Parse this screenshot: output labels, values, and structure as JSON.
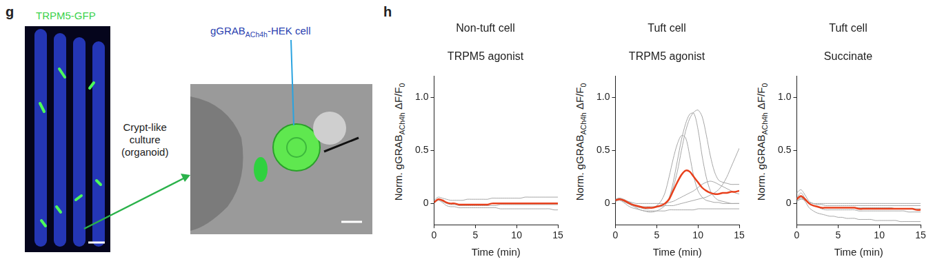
{
  "figure_g": {
    "label": "g",
    "stain_label": "TRPM5-GFP",
    "arrow_label": [
      "Crypt-like",
      "culture",
      "(organoid)"
    ],
    "cell_label": [
      {
        "text": "gGRAB"
      },
      {
        "text": "ACh4h",
        "sub": true
      },
      {
        "text": "-HEK cell"
      }
    ]
  },
  "panel_h_label": "h",
  "chart_data": [
    {
      "type": "line",
      "title": "Non-tuft cell",
      "subtitle": "TRPM5 agonist",
      "x_label": "Time (min)",
      "y_label": [
        {
          "text": "Norm. gGRAB"
        },
        {
          "text": "ACh4h",
          "sub": true
        },
        {
          "text": " ΔF/F"
        },
        {
          "text": "0",
          "sub": true
        }
      ],
      "x": [
        0,
        0.5,
        1,
        1.5,
        2,
        2.5,
        3,
        3.5,
        4,
        4.5,
        5,
        5.5,
        6,
        6.5,
        7,
        7.5,
        8,
        8.5,
        9,
        9.5,
        10,
        10.5,
        11,
        11.5,
        12,
        12.5,
        13,
        13.5,
        14,
        14.5,
        15
      ],
      "xlim": [
        0,
        15
      ],
      "xticks": [
        0,
        5,
        10,
        15
      ],
      "ylim": [
        -0.2,
        1.2
      ],
      "yticks": [
        0,
        0.5,
        {
          "value": 1,
          "label": "1.0"
        }
      ],
      "grid": false,
      "series": [
        {
          "color": "#a6a6a6",
          "values": [
            0.03,
            0.06,
            0.05,
            0.04,
            0.03,
            0.03,
            0.03,
            0.03,
            0.04,
            0.04,
            0.04,
            0.04,
            0.04,
            0.04,
            0.05,
            0.05,
            0.05,
            0.05,
            0.05,
            0.05,
            0.05,
            0.05,
            0.06,
            0.06,
            0.06,
            0.06,
            0.06,
            0.06,
            0.06,
            0.06,
            0.06
          ]
        },
        {
          "color": "#a6a6a6",
          "values": [
            0.01,
            0.04,
            0.02,
            0,
            -0.01,
            -0.01,
            -0.02,
            -0.02,
            -0.02,
            -0.02,
            -0.02,
            -0.02,
            -0.02,
            -0.02,
            -0.02,
            -0.02,
            -0.01,
            -0.01,
            -0.01,
            -0.01,
            -0.01,
            -0.01,
            -0.01,
            -0.01,
            -0.01,
            -0.01,
            -0.01,
            -0.01,
            -0.01,
            -0.01,
            -0.01
          ]
        },
        {
          "color": "#a6a6a6",
          "values": [
            0,
            0.03,
            0.01,
            -0.02,
            -0.03,
            -0.03,
            -0.04,
            -0.04,
            -0.04,
            -0.04,
            -0.04,
            -0.04,
            -0.04,
            -0.04,
            -0.04,
            -0.04,
            -0.05,
            -0.05,
            -0.05,
            -0.05,
            -0.05,
            -0.05,
            -0.05,
            -0.05,
            -0.05,
            -0.05,
            -0.05,
            -0.05,
            -0.05,
            -0.06,
            -0.06
          ]
        },
        {
          "color": "#e8401c",
          "values": [
            0.01,
            0.04,
            0.03,
            0.01,
            0,
            0,
            -0.01,
            -0.01,
            -0.01,
            -0.01,
            -0.01,
            -0.01,
            -0.01,
            -0.01,
            0,
            0,
            0,
            0,
            0,
            0,
            0,
            0,
            0,
            0,
            0,
            0,
            0,
            0,
            0,
            0,
            0
          ]
        }
      ]
    },
    {
      "type": "line",
      "title": "Tuft cell",
      "subtitle": "TRPM5 agonist",
      "x_label": "Time (min)",
      "y_label": [
        {
          "text": "Norm. gGRAB"
        },
        {
          "text": "ACh4h",
          "sub": true
        },
        {
          "text": " ΔF/F"
        },
        {
          "text": "0",
          "sub": true
        }
      ],
      "x": [
        0,
        0.5,
        1,
        1.5,
        2,
        2.5,
        3,
        3.5,
        4,
        4.5,
        5,
        5.5,
        6,
        6.5,
        7,
        7.5,
        8,
        8.5,
        9,
        9.5,
        10,
        10.5,
        11,
        11.5,
        12,
        12.5,
        13,
        13.5,
        14,
        14.5,
        15
      ],
      "xlim": [
        0,
        15
      ],
      "xticks": [
        0,
        5,
        10,
        15
      ],
      "ylim": [
        -0.2,
        1.2
      ],
      "yticks": [
        0,
        0.5,
        {
          "value": 1,
          "label": "1.0"
        }
      ],
      "grid": false,
      "series": [
        {
          "color": "#a6a6a6",
          "values": [
            0.03,
            0.05,
            0.04,
            0.02,
            0,
            -0.02,
            -0.03,
            -0.04,
            -0.04,
            -0.04,
            -0.03,
            -0.02,
            0,
            0.05,
            0.15,
            0.3,
            0.5,
            0.68,
            0.8,
            0.86,
            0.88,
            0.82,
            0.65,
            0.45,
            0.3,
            0.22,
            0.2,
            0.19,
            0.18,
            0.18,
            0.18
          ]
        },
        {
          "color": "#a6a6a6",
          "values": [
            0.02,
            0.04,
            0.02,
            0,
            -0.02,
            -0.04,
            -0.06,
            -0.07,
            -0.08,
            -0.08,
            -0.07,
            -0.05,
            -0.02,
            0.05,
            0.2,
            0.4,
            0.6,
            0.75,
            0.84,
            0.85,
            0.7,
            0.45,
            0.25,
            0.12,
            0.06,
            0.03,
            0.02,
            0.01,
            0,
            0,
            0
          ]
        },
        {
          "color": "#a6a6a6",
          "values": [
            0.04,
            0.05,
            0.03,
            0.01,
            -0.01,
            -0.03,
            -0.04,
            -0.05,
            -0.05,
            -0.04,
            -0.02,
            0.02,
            0.1,
            0.25,
            0.42,
            0.56,
            0.64,
            0.62,
            0.45,
            0.25,
            0.12,
            0.06,
            0.03,
            0.02,
            0.01,
            0.01,
            0,
            0,
            0,
            0,
            0
          ]
        },
        {
          "color": "#a6a6a6",
          "values": [
            0.03,
            0.04,
            0.02,
            0,
            -0.01,
            -0.02,
            -0.03,
            -0.03,
            -0.03,
            -0.03,
            -0.03,
            -0.03,
            -0.02,
            -0.02,
            -0.02,
            -0.01,
            0,
            0.01,
            0.02,
            0.03,
            0.04,
            0.05,
            0.06,
            0.08,
            0.1,
            0.13,
            0.18,
            0.25,
            0.34,
            0.43,
            0.52
          ]
        },
        {
          "color": "#a6a6a6",
          "values": [
            0.04,
            0.05,
            0.03,
            0.02,
            0.01,
            0,
            0,
            0,
            0,
            0,
            0,
            0,
            0,
            0.01,
            0.02,
            0.04,
            0.06,
            0.08,
            0.1,
            0.12,
            0.15,
            0.18,
            0.2,
            0.21,
            0.2,
            0.18,
            0.16,
            0.14,
            0.12,
            0.1,
            0.09
          ]
        },
        {
          "color": "#a6a6a6",
          "values": [
            0.02,
            0.03,
            0.01,
            -0.02,
            -0.04,
            -0.05,
            -0.06,
            -0.07,
            -0.07,
            -0.07,
            -0.07,
            -0.07,
            -0.07,
            -0.06,
            -0.06,
            -0.06,
            -0.06,
            -0.06,
            -0.06,
            -0.06,
            -0.05,
            -0.05,
            -0.05,
            -0.05,
            -0.05,
            -0.05,
            -0.05,
            -0.05,
            -0.05,
            -0.05,
            -0.05
          ]
        },
        {
          "color": "#e8401c",
          "values": [
            0.03,
            0.04,
            0.03,
            0.01,
            -0.01,
            -0.02,
            -0.03,
            -0.04,
            -0.04,
            -0.04,
            -0.03,
            -0.02,
            0,
            0.04,
            0.12,
            0.2,
            0.27,
            0.31,
            0.3,
            0.25,
            0.2,
            0.15,
            0.12,
            0.1,
            0.09,
            0.09,
            0.1,
            0.1,
            0.11,
            0.11,
            0.12
          ]
        }
      ]
    },
    {
      "type": "line",
      "title": "Tuft cell",
      "subtitle": "Succinate",
      "x_label": "Time (min)",
      "y_label": [
        {
          "text": "Norm. gGRAB"
        },
        {
          "text": "ACh4h",
          "sub": true
        },
        {
          "text": " ΔF/F"
        },
        {
          "text": "0",
          "sub": true
        }
      ],
      "x": [
        0,
        0.5,
        1,
        1.5,
        2,
        2.5,
        3,
        3.5,
        4,
        4.5,
        5,
        5.5,
        6,
        6.5,
        7,
        7.5,
        8,
        8.5,
        9,
        9.5,
        10,
        10.5,
        11,
        11.5,
        12,
        12.5,
        13,
        13.5,
        14,
        14.5,
        15
      ],
      "xlim": [
        0,
        15
      ],
      "xticks": [
        0,
        5,
        10,
        15
      ],
      "ylim": [
        -0.2,
        1.2
      ],
      "yticks": [
        0,
        0.5,
        {
          "value": 1,
          "label": "1.0"
        }
      ],
      "grid": false,
      "series": [
        {
          "color": "#a6a6a6",
          "values": [
            0.1,
            0.13,
            0.08,
            0.02,
            0,
            -0.01,
            -0.01,
            -0.02,
            -0.02,
            -0.02,
            -0.02,
            -0.02,
            -0.02,
            -0.02,
            -0.02,
            -0.02,
            -0.02,
            -0.02,
            -0.02,
            -0.02,
            -0.02,
            -0.02,
            -0.02,
            -0.02,
            -0.02,
            -0.02,
            -0.02,
            -0.02,
            -0.02,
            -0.02,
            -0.02
          ]
        },
        {
          "color": "#a6a6a6",
          "values": [
            0.05,
            0.1,
            0.05,
            0,
            -0.02,
            -0.03,
            -0.04,
            -0.04,
            -0.04,
            -0.04,
            -0.04,
            -0.04,
            -0.04,
            -0.04,
            -0.04,
            -0.04,
            -0.04,
            -0.04,
            -0.04,
            -0.04,
            -0.04,
            -0.04,
            -0.04,
            -0.04,
            -0.05,
            -0.05,
            -0.05,
            -0.05,
            -0.05,
            -0.05,
            -0.05
          ]
        },
        {
          "color": "#a6a6a6",
          "values": [
            0.03,
            0.06,
            0.02,
            -0.04,
            -0.07,
            -0.09,
            -0.1,
            -0.11,
            -0.12,
            -0.12,
            -0.13,
            -0.13,
            -0.14,
            -0.14,
            -0.14,
            -0.15,
            -0.15,
            -0.15,
            -0.15,
            -0.16,
            -0.16,
            -0.16,
            -0.16,
            -0.16,
            -0.16,
            -0.17,
            -0.17,
            -0.17,
            -0.17,
            -0.17,
            -0.17
          ]
        },
        {
          "color": "#a6a6a6",
          "values": [
            0.02,
            0.05,
            0.03,
            0,
            -0.02,
            -0.03,
            -0.05,
            -0.06,
            -0.06,
            -0.06,
            -0.06,
            -0.06,
            -0.06,
            -0.06,
            -0.06,
            -0.07,
            -0.07,
            -0.07,
            -0.07,
            -0.07,
            -0.07,
            -0.07,
            -0.07,
            -0.07,
            -0.07,
            -0.07,
            -0.07,
            -0.08,
            -0.08,
            -0.08,
            -0.08
          ]
        },
        {
          "color": "#a6a6a6",
          "values": [
            0.02,
            0.04,
            0.03,
            0.01,
            0,
            0,
            0,
            0,
            0,
            0,
            0,
            0,
            0,
            0,
            0,
            0,
            0,
            0,
            0,
            0,
            0,
            0,
            0,
            0,
            0,
            0,
            0,
            0,
            0,
            0,
            0
          ]
        },
        {
          "color": "#e8401c",
          "values": [
            0.04,
            0.07,
            0.04,
            0,
            -0.02,
            -0.03,
            -0.04,
            -0.04,
            -0.04,
            -0.04,
            -0.04,
            -0.04,
            -0.04,
            -0.04,
            -0.04,
            -0.05,
            -0.05,
            -0.05,
            -0.05,
            -0.05,
            -0.05,
            -0.05,
            -0.05,
            -0.05,
            -0.05,
            -0.05,
            -0.05,
            -0.05,
            -0.05,
            -0.06,
            -0.06
          ]
        }
      ]
    }
  ]
}
